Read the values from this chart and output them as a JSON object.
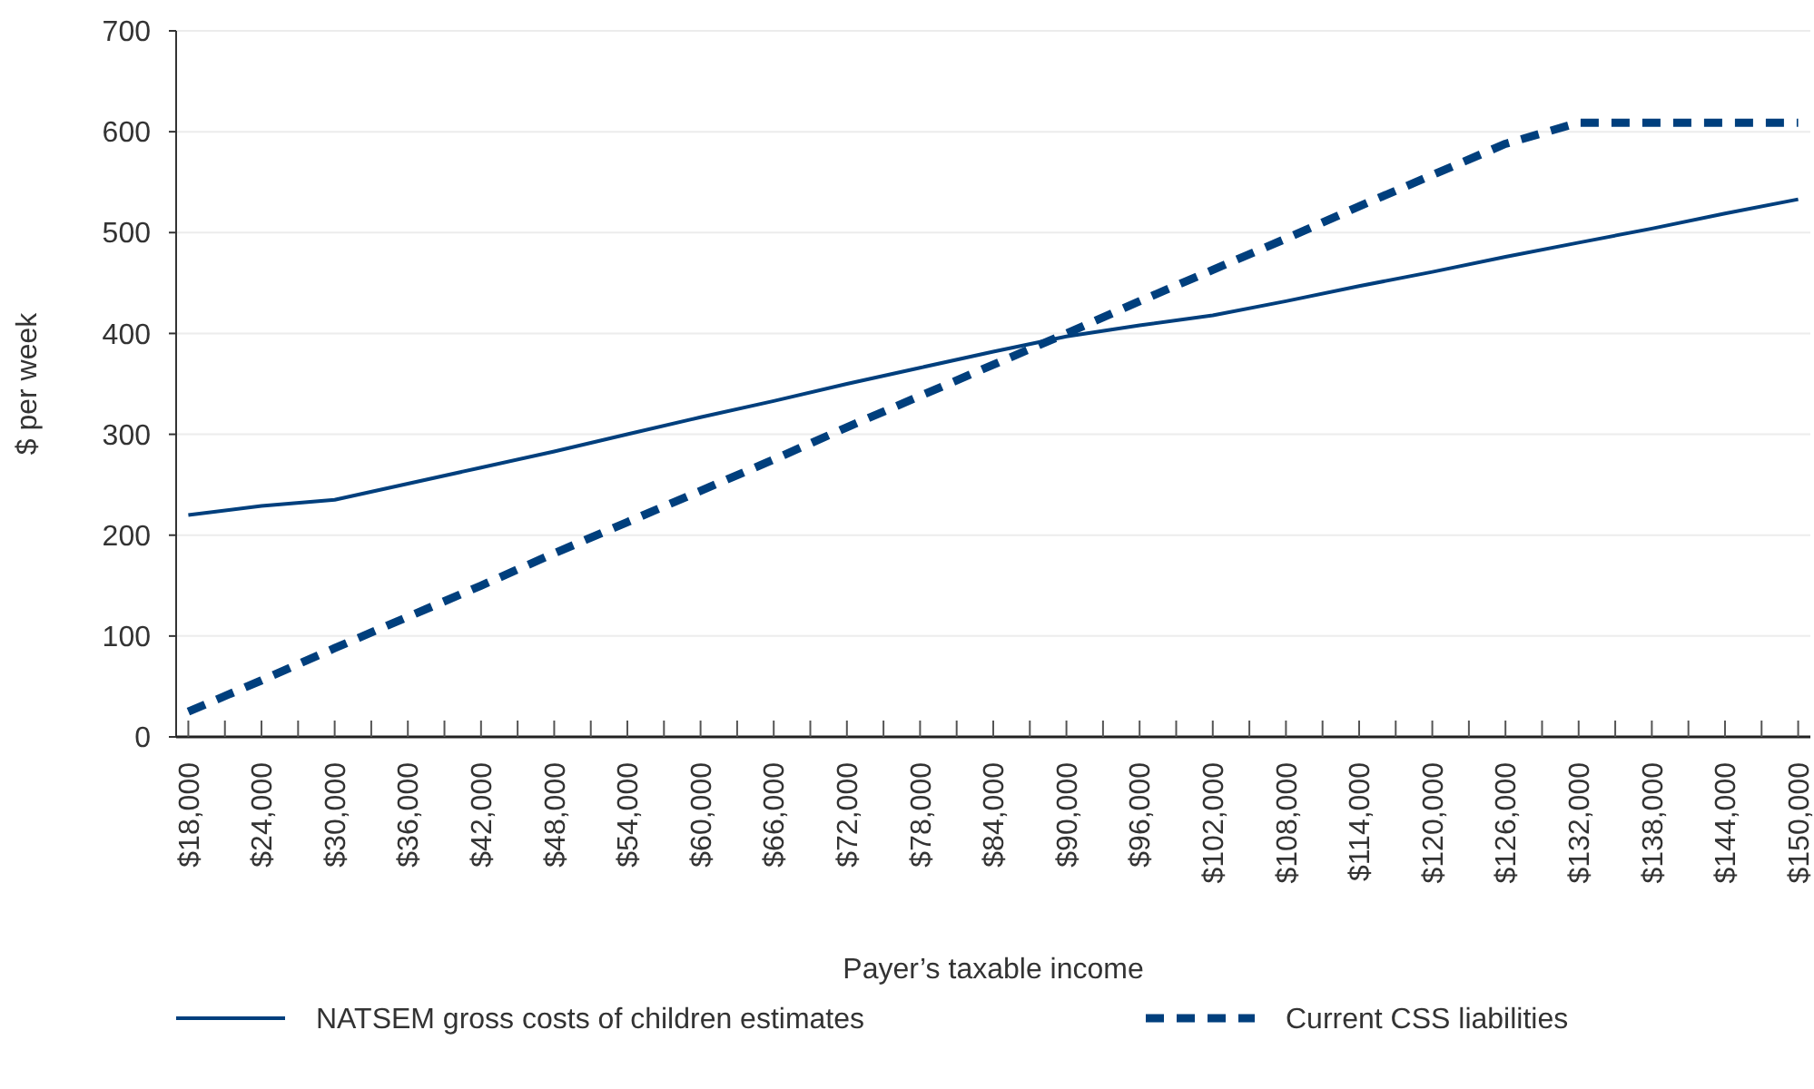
{
  "chart_data": {
    "type": "line",
    "xlabel": "Payer’s taxable income",
    "ylabel": "$ per week",
    "x": [
      18000,
      24000,
      30000,
      36000,
      42000,
      48000,
      54000,
      60000,
      66000,
      72000,
      78000,
      84000,
      90000,
      96000,
      102000,
      108000,
      114000,
      120000,
      126000,
      132000,
      138000,
      144000,
      150000
    ],
    "xlim": [
      17000,
      151000
    ],
    "xticks": [
      {
        "value": 18000,
        "label": "$18,000"
      },
      {
        "value": 21000,
        "label": null
      },
      {
        "value": 24000,
        "label": "$24,000"
      },
      {
        "value": 27000,
        "label": null
      },
      {
        "value": 30000,
        "label": "$30,000"
      },
      {
        "value": 33000,
        "label": null
      },
      {
        "value": 36000,
        "label": "$36,000"
      },
      {
        "value": 39000,
        "label": null
      },
      {
        "value": 42000,
        "label": "$42,000"
      },
      {
        "value": 45000,
        "label": null
      },
      {
        "value": 48000,
        "label": "$48,000"
      },
      {
        "value": 51000,
        "label": null
      },
      {
        "value": 54000,
        "label": "$54,000"
      },
      {
        "value": 57000,
        "label": null
      },
      {
        "value": 60000,
        "label": "$60,000"
      },
      {
        "value": 63000,
        "label": null
      },
      {
        "value": 66000,
        "label": "$66,000"
      },
      {
        "value": 69000,
        "label": null
      },
      {
        "value": 72000,
        "label": "$72,000"
      },
      {
        "value": 75000,
        "label": null
      },
      {
        "value": 78000,
        "label": "$78,000"
      },
      {
        "value": 81000,
        "label": null
      },
      {
        "value": 84000,
        "label": "$84,000"
      },
      {
        "value": 87000,
        "label": null
      },
      {
        "value": 90000,
        "label": "$90,000"
      },
      {
        "value": 93000,
        "label": null
      },
      {
        "value": 96000,
        "label": "$96,000"
      },
      {
        "value": 99000,
        "label": null
      },
      {
        "value": 102000,
        "label": "$102,000"
      },
      {
        "value": 105000,
        "label": null
      },
      {
        "value": 108000,
        "label": "$108,000"
      },
      {
        "value": 111000,
        "label": null
      },
      {
        "value": 114000,
        "label": "$114,000"
      },
      {
        "value": 117000,
        "label": null
      },
      {
        "value": 120000,
        "label": "$120,000"
      },
      {
        "value": 123000,
        "label": null
      },
      {
        "value": 126000,
        "label": "$126,000"
      },
      {
        "value": 129000,
        "label": null
      },
      {
        "value": 132000,
        "label": "$132,000"
      },
      {
        "value": 135000,
        "label": null
      },
      {
        "value": 138000,
        "label": "$138,000"
      },
      {
        "value": 141000,
        "label": null
      },
      {
        "value": 144000,
        "label": "$144,000"
      },
      {
        "value": 147000,
        "label": null
      },
      {
        "value": 150000,
        "label": "$150,000"
      }
    ],
    "ylim": [
      0,
      700
    ],
    "yticks": [
      0,
      100,
      200,
      300,
      400,
      500,
      600,
      700
    ],
    "grid": "y",
    "legend": "bottom",
    "series": [
      {
        "name": "NATSEM gross costs of children estimates",
        "color": "#003f7d",
        "line_style": "solid",
        "values": [
          220,
          229,
          235,
          251,
          267,
          283,
          300,
          317,
          333,
          350,
          366,
          382,
          397,
          408,
          418,
          432,
          447,
          461,
          476,
          490,
          504,
          519,
          533
        ]
      },
      {
        "name": "Current CSS liabilities",
        "color": "#003f7d",
        "line_style": "dashed",
        "values": [
          25,
          56,
          88,
          119,
          150,
          182,
          213,
          244,
          275,
          307,
          338,
          369,
          400,
          432,
          463,
          494,
          526,
          557,
          588,
          609,
          609,
          609,
          609
        ]
      }
    ]
  }
}
